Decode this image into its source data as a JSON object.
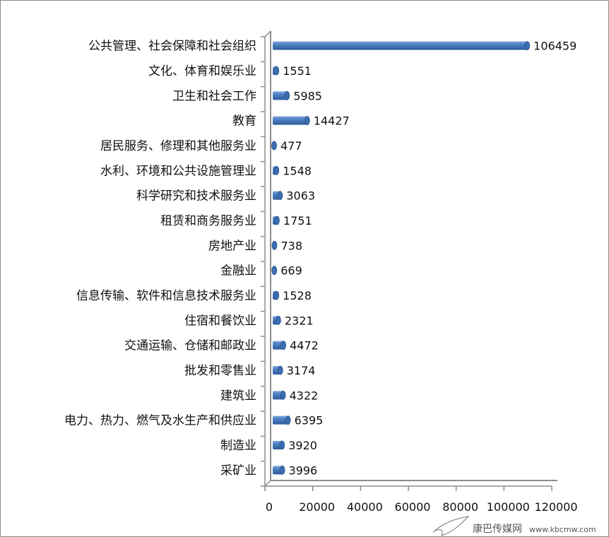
{
  "chart_data": {
    "type": "bar",
    "orientation": "horizontal",
    "style": "3d-cylinder",
    "categories": [
      "公共管理、社会保障和社会组织",
      "文化、体育和娱乐业",
      "卫生和社会工作",
      "教育",
      "居民服务、修理和其他服务业",
      "水利、环境和公共设施管理业",
      "科学研究和技术服务业",
      "租赁和商务服务业",
      "房地产业",
      "金融业",
      "信息传输、软件和信息技术服务业",
      "住宿和餐饮业",
      "交通运输、仓储和邮政业",
      "批发和零售业",
      "建筑业",
      "电力、热力、燃气及水生产和供应业",
      "制造业",
      "采矿业"
    ],
    "values": [
      106459,
      1551,
      5985,
      14427,
      477,
      1548,
      3063,
      1751,
      738,
      669,
      1528,
      2321,
      4472,
      3174,
      4322,
      6395,
      3920,
      3996
    ],
    "xlim": [
      0,
      120000
    ],
    "xticks": [
      "0",
      "20000",
      "40000",
      "60000",
      "80000",
      "100000",
      "120000"
    ],
    "data_labels": true,
    "grid": false,
    "legend": "none",
    "bar_color": "#4a7ebb"
  },
  "watermark": "www.kbcmw.com"
}
